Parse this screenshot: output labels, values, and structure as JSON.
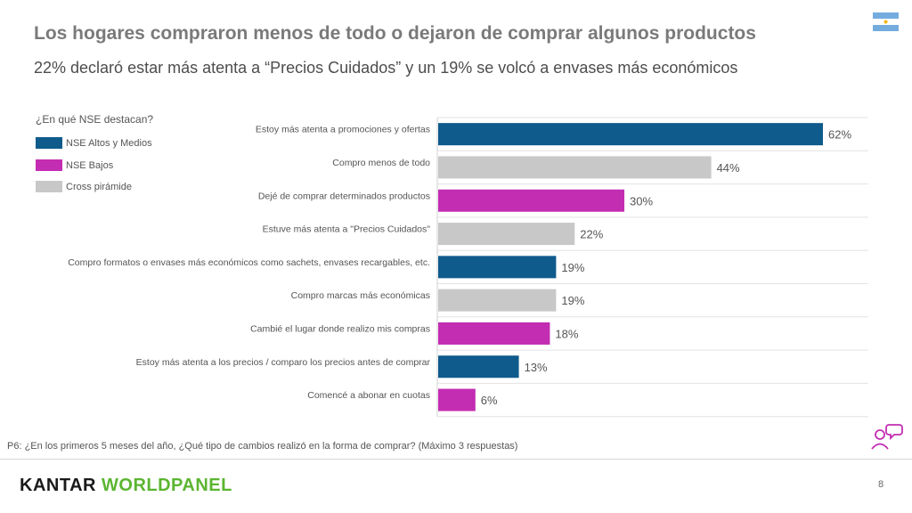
{
  "header": {
    "title": "Los hogares compraron menos de todo o dejaron de comprar algunos productos",
    "subtitle": "22% declaró estar más atenta a “Precios Cuidados” y un 19% se volcó a envases más económicos",
    "flag_icon": "argentina-flag-icon"
  },
  "legend": {
    "question": "¿En qué NSE destacan?",
    "items": [
      {
        "label": "NSE Altos y Medios",
        "color": "#0e5b8c"
      },
      {
        "label": "NSE Bajos",
        "color": "#c32db2"
      },
      {
        "label": "Cross pirámide",
        "color": "#c8c8c8"
      }
    ]
  },
  "chart_data": {
    "type": "bar",
    "orientation": "horizontal",
    "unit": "%",
    "xlim": [
      0,
      70
    ],
    "gridlines": true,
    "categories": [
      "Estoy más atenta a promociones y ofertas",
      "Compro menos de todo",
      "Dejé de comprar determinados productos",
      "Estuve más atenta a \"Precios Cuidados\"",
      "Compro formatos o envases más económicos como sachets, envases recargables, etc.",
      "Compro marcas más económicas",
      "Cambié el lugar donde realizo mis compras",
      "Estoy más atenta a los precios / comparo los precios antes de comprar",
      "Comencé a abonar en cuotas"
    ],
    "values": [
      62,
      44,
      30,
      22,
      19,
      19,
      18,
      13,
      6
    ],
    "value_labels": [
      "62%",
      "44%",
      "30%",
      "22%",
      "19%",
      "19%",
      "18%",
      "13%",
      "6%"
    ],
    "segments": [
      "NSE Altos y Medios",
      "Cross pirámide",
      "NSE Bajos",
      "Cross pirámide",
      "NSE Altos y Medios",
      "Cross pirámide",
      "NSE Bajos",
      "NSE Altos y Medios",
      "NSE Bajos"
    ]
  },
  "footer": {
    "footnote": "P6: ¿En los primeros 5 meses del año, ¿Qué tipo de cambios realizó en la forma de comprar? (Máximo 3 respuestas)",
    "logo_brand": "KANTAR",
    "logo_sub": "WORLDPANEL",
    "page_number": "8",
    "people_icon": "people-chat-icon"
  }
}
